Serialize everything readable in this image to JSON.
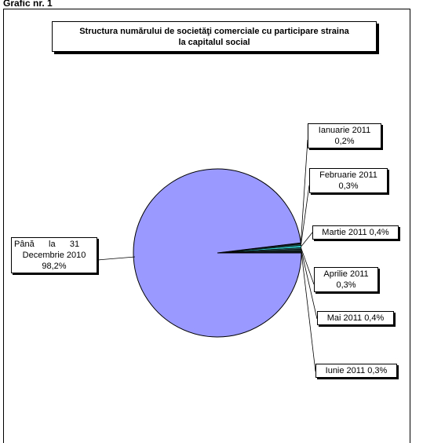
{
  "page": {
    "heading": "Grafic nr. 1"
  },
  "chart_data": {
    "type": "pie",
    "title_lines": [
      "Structura numărului de societăţi comerciale cu participare straina",
      "la capitalul social"
    ],
    "slices": [
      {
        "name": "Până la 31 Decembrie 2010",
        "value": 98.2,
        "label_lines": [
          "Până      la      31",
          "Decembrie 2010",
          "98,2%"
        ],
        "color": "#9999ff"
      },
      {
        "name": "Ianuarie 2011",
        "value": 0.2,
        "label_lines": [
          "Ianuarie 2011",
          "0,2%"
        ],
        "color": "#1a1a1a"
      },
      {
        "name": "Februarie 2011",
        "value": 0.3,
        "label_lines": [
          "Februarie 2011",
          "0,3%"
        ],
        "color": "#1f4f4f"
      },
      {
        "name": "Martie 2011",
        "value": 0.4,
        "label_lines": [
          "Martie 2011 0,4%"
        ],
        "color": "#33cccc"
      },
      {
        "name": "Aprilie 2011",
        "value": 0.3,
        "label_lines": [
          "Aprilie 2011",
          "0,3%"
        ],
        "color": "#2b5f5f"
      },
      {
        "name": "Mai 2011",
        "value": 0.4,
        "label_lines": [
          "Mai 2011 0,4%"
        ],
        "color": "#1e3030"
      },
      {
        "name": "Iunie 2011",
        "value": 0.3,
        "label_lines": [
          "Iunie 2011 0,3%"
        ],
        "color": "#0d1a1a"
      }
    ]
  }
}
